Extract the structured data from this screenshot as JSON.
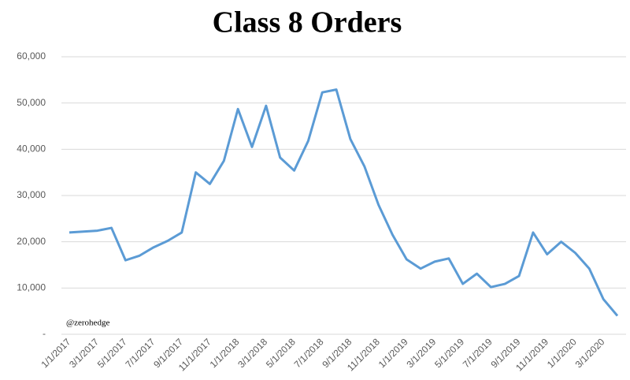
{
  "chart_data": {
    "type": "line",
    "title": "Class 8 Orders",
    "watermark": "@zerohedge",
    "categories": [
      "1/1/2017",
      null,
      "3/1/2017",
      null,
      "5/1/2017",
      null,
      "7/1/2017",
      null,
      "9/1/2017",
      null,
      "11/1/2017",
      null,
      "1/1/2018",
      null,
      "3/1/2018",
      null,
      "5/1/2018",
      null,
      "7/1/2018",
      null,
      "9/1/2018",
      null,
      "11/1/2018",
      null,
      "1/1/2019",
      null,
      "3/1/2019",
      null,
      "5/1/2019",
      null,
      "7/1/2019",
      null,
      "9/1/2019",
      null,
      "11/1/2019",
      null,
      "1/1/2020",
      null,
      "3/1/2020",
      null
    ],
    "series": [
      {
        "name": "Class 8 Orders",
        "color": "#5b9bd5",
        "values": [
          22000,
          22200,
          22400,
          23000,
          16000,
          17000,
          18800,
          20200,
          22000,
          35000,
          32500,
          37500,
          48700,
          40500,
          49400,
          38200,
          35400,
          41800,
          52300,
          52900,
          42200,
          36300,
          28000,
          21500,
          16200,
          14200,
          15700,
          16400,
          10900,
          13100,
          10200,
          10900,
          12600,
          22000,
          17300,
          20000,
          17600,
          14200,
          7600,
          4000
        ]
      }
    ],
    "ylim": [
      0,
      60000
    ],
    "yticks": [
      {
        "value": 0,
        "label": "-"
      },
      {
        "value": 10000,
        "label": "10,000"
      },
      {
        "value": 20000,
        "label": "20,000"
      },
      {
        "value": 30000,
        "label": "30,000"
      },
      {
        "value": 40000,
        "label": "40,000"
      },
      {
        "value": 50000,
        "label": "50,000"
      },
      {
        "value": 60000,
        "label": "60,000"
      }
    ],
    "grid": true
  }
}
